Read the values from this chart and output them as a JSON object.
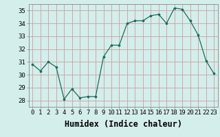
{
  "x": [
    0,
    1,
    2,
    3,
    4,
    5,
    6,
    7,
    8,
    9,
    10,
    11,
    12,
    13,
    14,
    15,
    16,
    17,
    18,
    19,
    20,
    21,
    22,
    23
  ],
  "y": [
    30.8,
    30.3,
    31.0,
    30.6,
    28.1,
    28.9,
    28.2,
    28.3,
    28.3,
    31.4,
    32.3,
    32.3,
    34.0,
    34.2,
    34.2,
    34.6,
    34.7,
    34.0,
    35.2,
    35.1,
    34.2,
    33.1,
    31.1,
    30.1
  ],
  "xlabel": "Humidex (Indice chaleur)",
  "ylim": [
    27.5,
    35.5
  ],
  "xlim": [
    -0.5,
    23.5
  ],
  "yticks": [
    28,
    29,
    30,
    31,
    32,
    33,
    34,
    35
  ],
  "xticks": [
    0,
    1,
    2,
    3,
    4,
    5,
    6,
    7,
    8,
    9,
    10,
    11,
    12,
    13,
    14,
    15,
    16,
    17,
    18,
    19,
    20,
    21,
    22,
    23
  ],
  "line_color": "#1a6b5a",
  "marker_color": "#1a6b5a",
  "bg_color": "#d4eeeb",
  "grid_color": "#c8a0a0",
  "tick_label_fontsize": 6.5,
  "xlabel_fontsize": 8.5,
  "spine_color": "#888888"
}
